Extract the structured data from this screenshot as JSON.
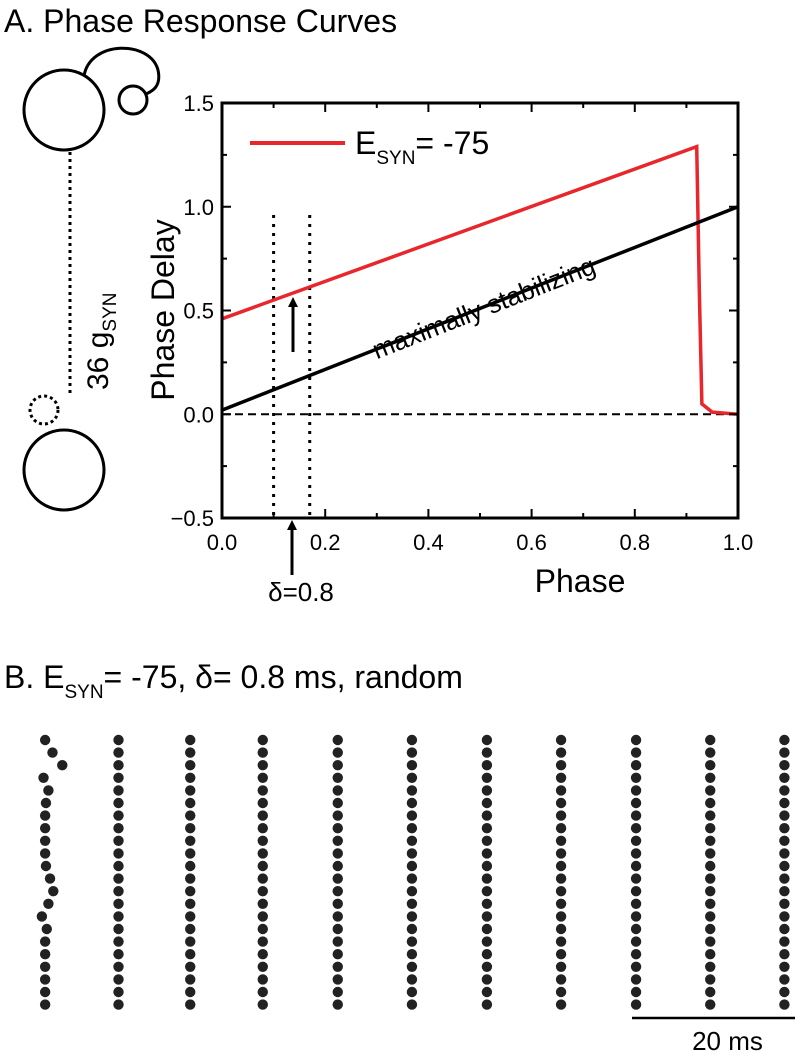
{
  "chart_data": [
    {
      "type": "line",
      "title": "A. Phase Response Curves",
      "diagram_label": [
        "36 g",
        "SYN"
      ],
      "xlabel": "Phase",
      "ylabel": "Phase Delay",
      "xlim": [
        0,
        1
      ],
      "ylim": [
        -0.5,
        1.5
      ],
      "xticks": [
        {
          "value": 0,
          "label": "0.0"
        },
        0.2,
        0.4,
        0.6,
        0.8,
        {
          "value": 1,
          "label": "1.0"
        }
      ],
      "yticks": [
        {
          "value": -0.5,
          "label": "−0.5"
        },
        {
          "value": 0,
          "label": "0.0"
        },
        0.5,
        {
          "value": 1,
          "label": "1.0"
        },
        1.5
      ],
      "xminor": [
        0.1,
        0.3,
        0.5,
        0.7,
        0.9
      ],
      "yminor": [
        -0.25,
        0.25,
        0.75,
        1.25
      ],
      "hline": 0,
      "vlines": [
        0.1,
        0.17
      ],
      "series": [
        {
          "name_parts": [
            "E",
            "SYN",
            "= -75"
          ],
          "color": "#e8262b",
          "x": [
            0,
            0.92,
            0.925,
            0.93,
            0.95,
            1.0
          ],
          "y": [
            0.46,
            1.29,
            0.6,
            0.05,
            0.01,
            0
          ]
        },
        {
          "color": "#000000",
          "x": [
            0,
            1.0
          ],
          "y": [
            0.02,
            1.0
          ]
        }
      ],
      "annotations": [
        "maximally stabilizing",
        "δ=0.8"
      ]
    },
    {
      "type": "raster",
      "title_parts": [
        "B. E",
        "SYN",
        "= -75, δ= 0.8 ms, random"
      ],
      "xlim": [
        -1,
        92
      ],
      "color": "#222222",
      "scale_bar": {
        "length": 20,
        "label": "20 ms"
      },
      "columns": [
        [
          0,
          0.9,
          2.1,
          -0.2,
          0.4,
          0.1,
          0,
          0,
          0,
          0,
          0.1,
          0.6,
          1.0,
          0.4,
          -0.4,
          0.2,
          0,
          0,
          0,
          0,
          0,
          0
        ],
        [
          9.0,
          9.0,
          9.0,
          9.0,
          9.0,
          9.0,
          9.0,
          9.0,
          9.0,
          9.0,
          9.0,
          9.0,
          9.0,
          9.0,
          9.0,
          9.0,
          9.0,
          9.0,
          9.0,
          9.0,
          9.0,
          9.0
        ],
        [
          17.8,
          17.8,
          17.8,
          17.8,
          17.8,
          17.8,
          17.8,
          17.8,
          17.8,
          17.8,
          17.8,
          17.8,
          17.8,
          17.8,
          17.8,
          17.8,
          17.8,
          17.8,
          17.8,
          17.8,
          17.8,
          17.8
        ],
        [
          26.7,
          26.7,
          26.7,
          26.7,
          26.7,
          26.7,
          26.7,
          26.7,
          26.7,
          26.7,
          26.7,
          26.7,
          26.7,
          26.7,
          26.7,
          26.7,
          26.7,
          26.7,
          26.7,
          26.7,
          26.7,
          26.7
        ],
        [
          35.9,
          35.9,
          35.9,
          35.9,
          35.9,
          35.9,
          35.9,
          35.9,
          35.9,
          35.9,
          35.9,
          35.9,
          35.9,
          35.9,
          35.9,
          35.9,
          35.9,
          35.9,
          35.9,
          35.9,
          35.9,
          35.9
        ],
        [
          45.0,
          45.0,
          45.0,
          45.0,
          45.0,
          45.0,
          45.0,
          45.0,
          45.0,
          45.0,
          45.0,
          45.0,
          45.0,
          45.0,
          45.0,
          45.0,
          45.0,
          45.0,
          45.0,
          45.0,
          45.0,
          45.0
        ],
        [
          54.2,
          54.2,
          54.2,
          54.2,
          54.2,
          54.2,
          54.2,
          54.2,
          54.2,
          54.2,
          54.2,
          54.2,
          54.2,
          54.2,
          54.2,
          54.2,
          54.2,
          54.2,
          54.2,
          54.2,
          54.2,
          54.2
        ],
        [
          63.3,
          63.3,
          63.3,
          63.3,
          63.3,
          63.3,
          63.3,
          63.3,
          63.3,
          63.3,
          63.3,
          63.3,
          63.3,
          63.3,
          63.3,
          63.3,
          63.3,
          63.3,
          63.3,
          63.3,
          63.3,
          63.3
        ],
        [
          72.5,
          72.5,
          72.5,
          72.5,
          72.5,
          72.5,
          72.5,
          72.5,
          72.5,
          72.5,
          72.5,
          72.5,
          72.5,
          72.5,
          72.5,
          72.5,
          72.5,
          72.5,
          72.5,
          72.5,
          72.5,
          72.5
        ],
        [
          81.6,
          81.6,
          81.6,
          81.6,
          81.6,
          81.6,
          81.6,
          81.6,
          81.6,
          81.6,
          81.6,
          81.6,
          81.6,
          81.6,
          81.6,
          81.6,
          81.6,
          81.6,
          81.6,
          81.6,
          81.6,
          81.6
        ],
        [
          90.7,
          90.7,
          90.7,
          90.7,
          90.7,
          90.7,
          90.7,
          90.7,
          90.7,
          90.7,
          90.7,
          90.7,
          90.7,
          90.7,
          90.7,
          90.7,
          90.7,
          90.7,
          90.7,
          90.7,
          90.7,
          90.7
        ]
      ]
    }
  ]
}
